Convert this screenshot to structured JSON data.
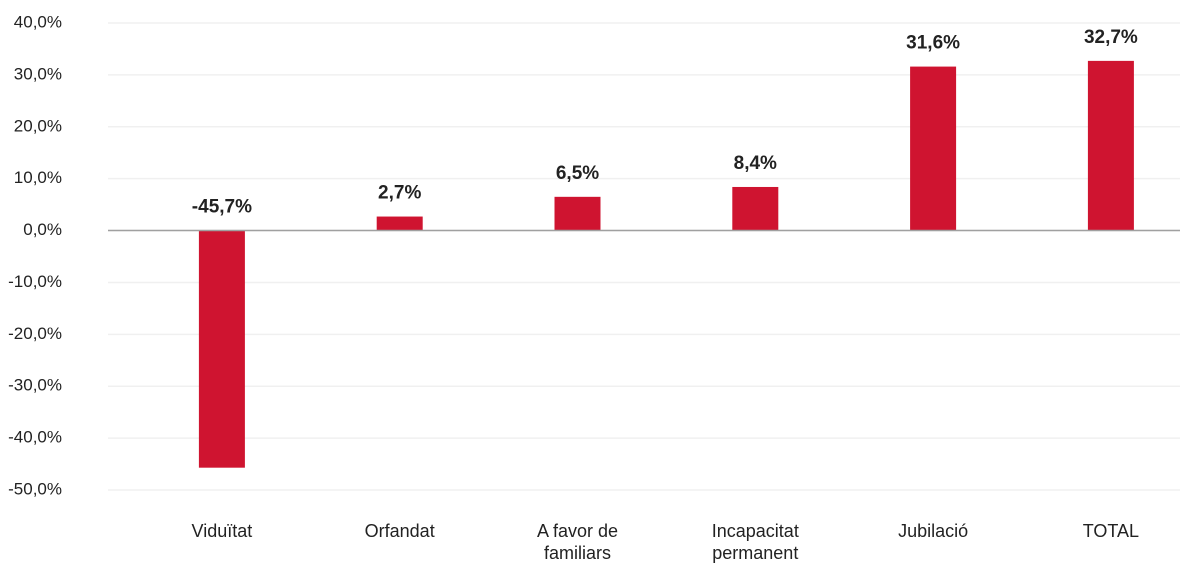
{
  "chart_data": {
    "type": "bar",
    "categories": [
      "Viduïtat",
      "Orfandat",
      "A favor de familiars",
      "Incapacitat permanent",
      "Jubilació",
      "TOTAL"
    ],
    "values": [
      -45.7,
      2.7,
      6.5,
      8.4,
      31.6,
      32.7
    ],
    "value_labels": [
      "-45,7%",
      "2,7%",
      "6,5%",
      "8,4%",
      "31,6%",
      "32,7%"
    ],
    "color": "#cf1430",
    "ylim": [
      -50,
      40
    ],
    "yticks": [
      {
        "value": -50,
        "label": "-50,0%"
      },
      {
        "value": -40,
        "label": "-40,0%"
      },
      {
        "value": -30,
        "label": "-30,0%"
      },
      {
        "value": -20,
        "label": "-20,0%"
      },
      {
        "value": -10,
        "label": "-10,0%"
      },
      {
        "value": 0,
        "label": "0,0%"
      },
      {
        "value": 10,
        "label": "10,0%"
      },
      {
        "value": 20,
        "label": "20,0%"
      },
      {
        "value": 30,
        "label": "30,0%"
      },
      {
        "value": 40,
        "label": "40,0%"
      }
    ],
    "grid": true
  }
}
